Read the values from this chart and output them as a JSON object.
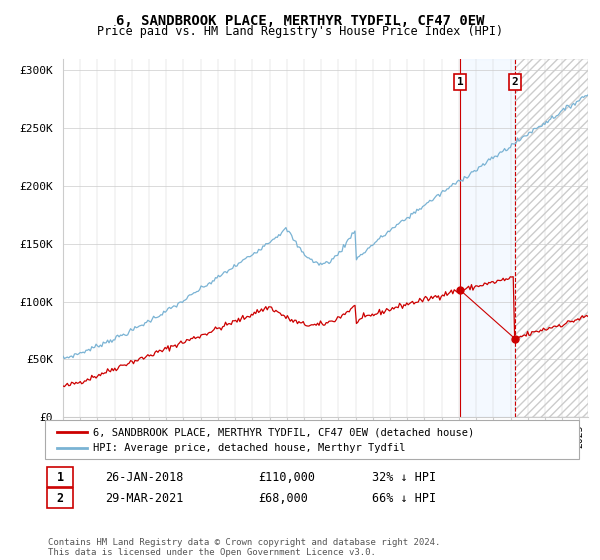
{
  "title": "6, SANDBROOK PLACE, MERTHYR TYDFIL, CF47 0EW",
  "subtitle": "Price paid vs. HM Land Registry's House Price Index (HPI)",
  "ylabel_ticks": [
    "£0",
    "£50K",
    "£100K",
    "£150K",
    "£200K",
    "£250K",
    "£300K"
  ],
  "ytick_values": [
    0,
    50000,
    100000,
    150000,
    200000,
    250000,
    300000
  ],
  "ylim": [
    0,
    310000
  ],
  "xlim_start": 1995.0,
  "xlim_end": 2025.5,
  "hpi_color": "#7ab3d4",
  "price_color": "#cc0000",
  "vline1_color": "#cc0000",
  "vline2_color": "#cc0000",
  "shaded_color": "#ddeeff",
  "marker1_date": 2018.07,
  "marker2_date": 2021.25,
  "sale1_value": 110000,
  "sale2_value": 68000,
  "marker1_label": "1",
  "marker2_label": "2",
  "legend_entry1": "6, SANDBROOK PLACE, MERTHYR TYDFIL, CF47 0EW (detached house)",
  "legend_entry2": "HPI: Average price, detached house, Merthyr Tydfil",
  "table_row1": [
    "1",
    "26-JAN-2018",
    "£110,000",
    "32% ↓ HPI"
  ],
  "table_row2": [
    "2",
    "29-MAR-2021",
    "£68,000",
    "66% ↓ HPI"
  ],
  "footnote": "Contains HM Land Registry data © Crown copyright and database right 2024.\nThis data is licensed under the Open Government Licence v3.0.",
  "background_color": "#ffffff",
  "grid_color": "#cccccc"
}
